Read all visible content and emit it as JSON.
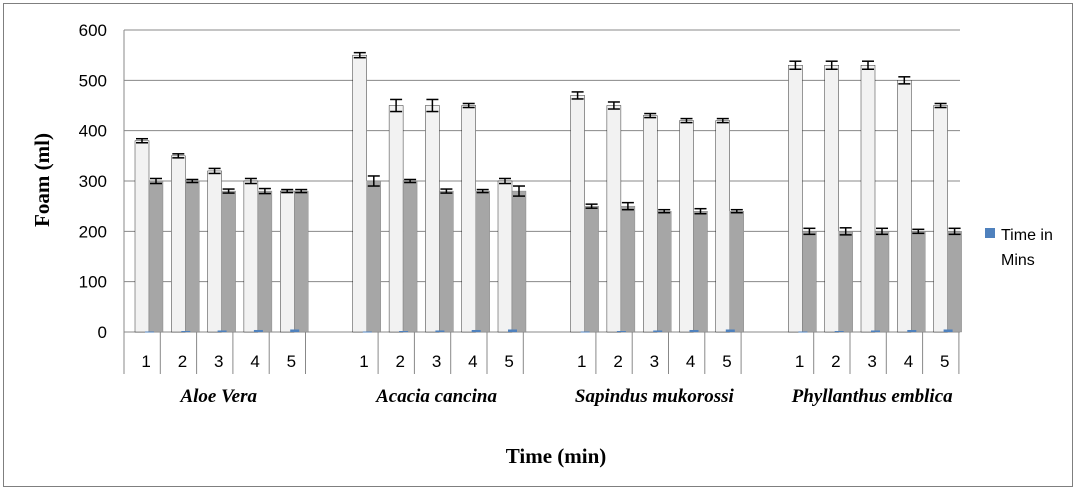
{
  "chart_data": {
    "type": "bar",
    "ylabel": "Foam (ml)",
    "xlabel": "Time (min)",
    "ylim": [
      0,
      600
    ],
    "yticks": [
      0,
      100,
      200,
      300,
      400,
      500,
      600
    ],
    "grid": "horizontal",
    "legend": {
      "placement": "right",
      "entries": [
        "Time in Mins"
      ]
    },
    "groups": [
      {
        "name": "Aloe Vera",
        "times": [
          "1",
          "2",
          "3",
          "4",
          "5"
        ],
        "light": [
          380,
          350,
          320,
          300,
          280
        ],
        "light_err": [
          4,
          4,
          5,
          5,
          3
        ],
        "dark": [
          300,
          300,
          280,
          280,
          280
        ],
        "dark_err": [
          5,
          3,
          4,
          5,
          3
        ],
        "time_series": [
          1,
          2,
          3,
          4,
          5
        ]
      },
      {
        "name": "Acacia cancina",
        "times": [
          "1",
          "2",
          "3",
          "4",
          "5"
        ],
        "light": [
          550,
          450,
          450,
          450,
          300
        ],
        "light_err": [
          5,
          12,
          12,
          4,
          5
        ],
        "dark": [
          300,
          300,
          280,
          280,
          280
        ],
        "dark_err": [
          10,
          3,
          4,
          3,
          10
        ],
        "time_series": [
          1,
          2,
          3,
          4,
          5
        ]
      },
      {
        "name": "Sapindus mukorossi",
        "times": [
          "1",
          "2",
          "3",
          "4",
          "5"
        ],
        "light": [
          470,
          450,
          430,
          420,
          420
        ],
        "light_err": [
          7,
          7,
          4,
          4,
          4
        ],
        "dark": [
          250,
          250,
          240,
          240,
          240
        ],
        "dark_err": [
          4,
          7,
          3,
          5,
          3
        ],
        "time_series": [
          1,
          2,
          3,
          4,
          5
        ]
      },
      {
        "name": "Phyllanthus emblica",
        "times": [
          "1",
          "2",
          "3",
          "4",
          "5"
        ],
        "light": [
          530,
          530,
          530,
          500,
          450
        ],
        "light_err": [
          8,
          8,
          8,
          7,
          4
        ],
        "dark": [
          200,
          200,
          200,
          200,
          200
        ],
        "dark_err": [
          6,
          7,
          6,
          4,
          6
        ],
        "time_series": [
          1,
          2,
          3,
          4,
          5
        ]
      }
    ],
    "colors": {
      "light_bar": "#f2f2f2",
      "dark_bar": "#a6a6a6",
      "time_series": "#4f81bd",
      "grid": "#888888",
      "bar_outline": "#000000"
    }
  }
}
